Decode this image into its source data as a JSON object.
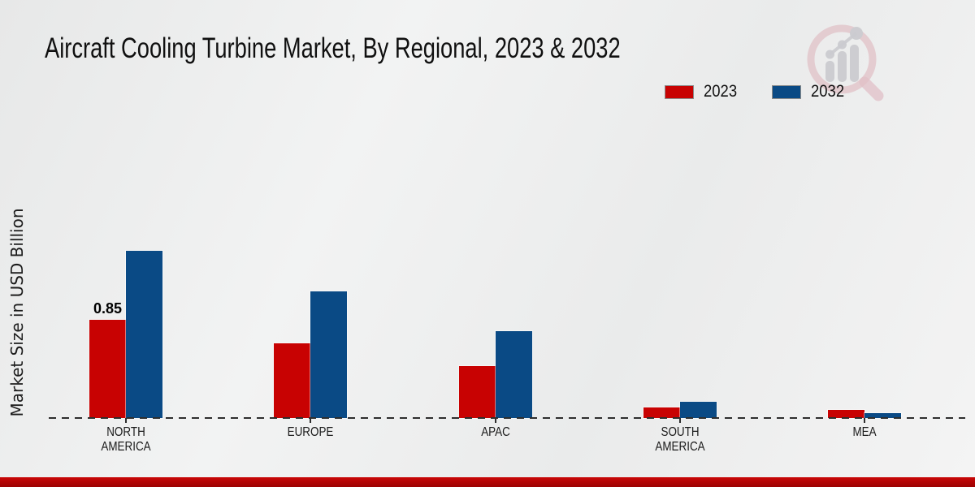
{
  "chart_data": {
    "type": "bar",
    "title": "Aircraft Cooling Turbine Market, By Regional, 2023 & 2032",
    "xlabel": "",
    "ylabel": "Market Size in USD Billion",
    "unit": "USD Billion",
    "ylim": [
      0,
      1.6
    ],
    "grid": false,
    "legend_position": "top-right",
    "axis_line_style": "dashed",
    "categories": [
      "North America",
      "Europe",
      "APAC",
      "South America",
      "MEA"
    ],
    "category_display": [
      [
        "NORTH",
        "AMERICA"
      ],
      [
        "EUROPE"
      ],
      [
        "APAC"
      ],
      [
        "SOUTH",
        "AMERICA"
      ],
      [
        "MEA"
      ]
    ],
    "series": [
      {
        "name": "2023",
        "color": "#c80202",
        "values": [
          0.85,
          0.65,
          0.45,
          0.09,
          0.07
        ]
      },
      {
        "name": "2032",
        "color": "#0a4a85",
        "values": [
          1.45,
          1.1,
          0.75,
          0.14,
          0.04
        ]
      }
    ],
    "annotations": [
      {
        "series": "2023",
        "category": "North America",
        "text": "0.85"
      }
    ]
  },
  "footer": {
    "strip_color": "#b80b0b"
  },
  "watermark": {
    "icon": "magnifier-bar-chart-logo",
    "ring_color": "#dfb9c0",
    "bars_color": "#c6c6cb"
  }
}
